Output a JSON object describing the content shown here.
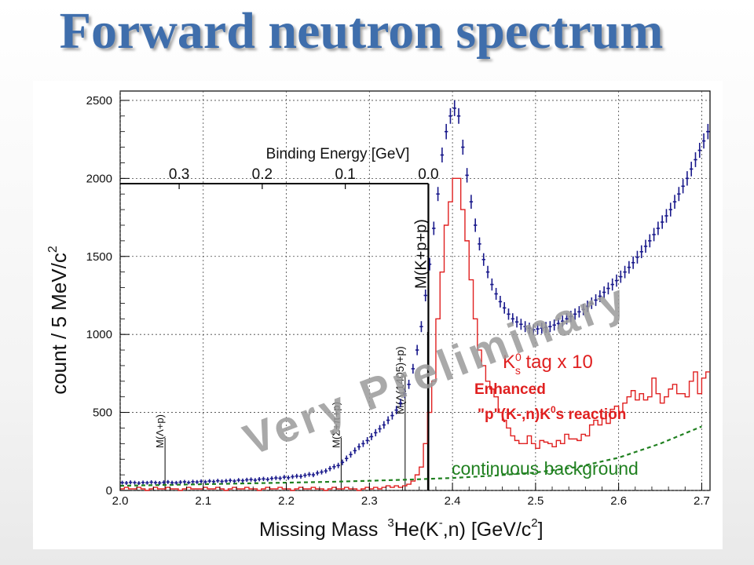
{
  "slide": {
    "title": "Forward neutron spectrum"
  },
  "chart_data": {
    "type": "scatter",
    "xlabel_parts": {
      "prefix": "Missing Mass",
      "sup1": "3",
      "mid": "He(K",
      "sup2": "-",
      "tail": ",n) [GeV/c",
      "sup3": "2",
      "end": "]"
    },
    "ylabel": "count / 5 MeV/c",
    "ylabel_sup": "2",
    "xlim": [
      2.0,
      2.71
    ],
    "ylim": [
      0,
      2560
    ],
    "x_ticks": [
      "2.0",
      "2.1",
      "2.2",
      "2.3",
      "2.4",
      "2.5",
      "2.6",
      "2.7"
    ],
    "y_ticks": [
      "0",
      "500",
      "1000",
      "1500",
      "2000",
      "2500"
    ],
    "top_axis": {
      "label": "Binding Energy [GeV]",
      "ticks": [
        {
          "label": "0.3",
          "x": 2.071
        },
        {
          "label": "0.2",
          "x": 2.171
        },
        {
          "label": "0.1",
          "x": 2.271
        },
        {
          "label": "0.0",
          "x": 2.371
        }
      ]
    },
    "grid": true,
    "series": [
      {
        "name": "data",
        "color": "#1a1a8c",
        "x": [
          2.0025,
          2.0075,
          2.0125,
          2.0175,
          2.0225,
          2.0275,
          2.0325,
          2.0375,
          2.0425,
          2.0475,
          2.0525,
          2.0575,
          2.0625,
          2.0675,
          2.0725,
          2.0775,
          2.0825,
          2.0875,
          2.0925,
          2.0975,
          2.1025,
          2.1075,
          2.1125,
          2.1175,
          2.1225,
          2.1275,
          2.1325,
          2.1375,
          2.1425,
          2.1475,
          2.1525,
          2.1575,
          2.1625,
          2.1675,
          2.1725,
          2.1775,
          2.1825,
          2.1875,
          2.1925,
          2.1975,
          2.2025,
          2.2075,
          2.2125,
          2.2175,
          2.2225,
          2.2275,
          2.2325,
          2.2375,
          2.2425,
          2.2475,
          2.2525,
          2.2575,
          2.2625,
          2.2675,
          2.2725,
          2.2775,
          2.2825,
          2.2875,
          2.2925,
          2.2975,
          2.3025,
          2.3075,
          2.3125,
          2.3175,
          2.3225,
          2.3275,
          2.3325,
          2.3375,
          2.3425,
          2.3475,
          2.3525,
          2.3575,
          2.3625,
          2.3675,
          2.3725,
          2.3775,
          2.3825,
          2.3875,
          2.3925,
          2.3975,
          2.4025,
          2.4075,
          2.4125,
          2.4175,
          2.4225,
          2.4275,
          2.4325,
          2.4375,
          2.4425,
          2.4475,
          2.4525,
          2.4575,
          2.4625,
          2.4675,
          2.4725,
          2.4775,
          2.4825,
          2.4875,
          2.4925,
          2.4975,
          2.5025,
          2.5075,
          2.5125,
          2.5175,
          2.5225,
          2.5275,
          2.5325,
          2.5375,
          2.5425,
          2.5475,
          2.5525,
          2.5575,
          2.5625,
          2.5675,
          2.5725,
          2.5775,
          2.5825,
          2.5875,
          2.5925,
          2.5975,
          2.6025,
          2.6075,
          2.6125,
          2.6175,
          2.6225,
          2.6275,
          2.6325,
          2.6375,
          2.6425,
          2.6475,
          2.6525,
          2.6575,
          2.6625,
          2.6675,
          2.6725,
          2.6775,
          2.6825,
          2.6875,
          2.6925,
          2.6975,
          2.7025,
          2.7075
        ],
        "y": [
          50,
          48,
          52,
          50,
          47,
          51,
          49,
          53,
          50,
          48,
          52,
          54,
          50,
          49,
          53,
          55,
          51,
          56,
          54,
          58,
          55,
          60,
          57,
          62,
          58,
          61,
          64,
          60,
          66,
          63,
          68,
          70,
          66,
          72,
          74,
          71,
          77,
          80,
          78,
          85,
          82,
          88,
          92,
          90,
          97,
          103,
          100,
          112,
          118,
          125,
          140,
          152,
          160,
          180,
          205,
          230,
          255,
          280,
          300,
          320,
          345,
          370,
          395,
          420,
          450,
          480,
          515,
          560,
          620,
          680,
          780,
          900,
          1050,
          1250,
          1450,
          1680,
          1900,
          2150,
          2300,
          2400,
          2450,
          2400,
          2200,
          2020,
          1850,
          1700,
          1580,
          1480,
          1400,
          1320,
          1260,
          1210,
          1170,
          1130,
          1100,
          1080,
          1065,
          1050,
          1040,
          1030,
          1035,
          1040,
          1045,
          1050,
          1060,
          1070,
          1085,
          1100,
          1115,
          1130,
          1145,
          1160,
          1180,
          1200,
          1220,
          1245,
          1270,
          1295,
          1320,
          1345,
          1370,
          1400,
          1430,
          1460,
          1495,
          1530,
          1565,
          1600,
          1640,
          1680,
          1720,
          1760,
          1800,
          1850,
          1900,
          1950,
          2000,
          2060,
          2120,
          2180,
          2240,
          2300
        ]
      },
      {
        "name": "K0s tag x 10",
        "color": "#e02020",
        "x": [
          2.0025,
          2.0075,
          2.0125,
          2.0175,
          2.0225,
          2.0275,
          2.0325,
          2.0375,
          2.0425,
          2.0475,
          2.0525,
          2.0575,
          2.0625,
          2.0675,
          2.0725,
          2.0775,
          2.0825,
          2.0875,
          2.0925,
          2.0975,
          2.1025,
          2.1075,
          2.1125,
          2.1175,
          2.1225,
          2.1275,
          2.1325,
          2.1375,
          2.1425,
          2.1475,
          2.1525,
          2.1575,
          2.1625,
          2.1675,
          2.1725,
          2.1775,
          2.1825,
          2.1875,
          2.1925,
          2.1975,
          2.2025,
          2.2075,
          2.2125,
          2.2175,
          2.2225,
          2.2275,
          2.2325,
          2.2375,
          2.2425,
          2.2475,
          2.2525,
          2.2575,
          2.2625,
          2.2675,
          2.2725,
          2.2775,
          2.2825,
          2.2875,
          2.2925,
          2.2975,
          2.3025,
          2.3075,
          2.3125,
          2.3175,
          2.3225,
          2.3275,
          2.3325,
          2.3375,
          2.3425,
          2.3475,
          2.3525,
          2.3575,
          2.3625,
          2.3675,
          2.3725,
          2.3775,
          2.3825,
          2.3875,
          2.3925,
          2.3975,
          2.4025,
          2.4075,
          2.4125,
          2.4175,
          2.4225,
          2.4275,
          2.4325,
          2.4375,
          2.4425,
          2.4475,
          2.4525,
          2.4575,
          2.4625,
          2.4675,
          2.4725,
          2.4775,
          2.4825,
          2.4875,
          2.4925,
          2.4975,
          2.5025,
          2.5075,
          2.5125,
          2.5175,
          2.5225,
          2.5275,
          2.5325,
          2.5375,
          2.5425,
          2.5475,
          2.5525,
          2.5575,
          2.5625,
          2.5675,
          2.5725,
          2.5775,
          2.5825,
          2.5875,
          2.5925,
          2.5975,
          2.6025,
          2.6075,
          2.6125,
          2.6175,
          2.6225,
          2.6275,
          2.6325,
          2.6375,
          2.6425,
          2.6475,
          2.6525,
          2.6575,
          2.6625,
          2.6675,
          2.6725,
          2.6775,
          2.6825,
          2.6875,
          2.6925,
          2.6975,
          2.7025,
          2.7075
        ],
        "y": [
          10,
          20,
          10,
          10,
          20,
          10,
          0,
          10,
          20,
          10,
          10,
          20,
          10,
          10,
          0,
          10,
          20,
          10,
          10,
          10,
          20,
          10,
          10,
          20,
          10,
          0,
          10,
          20,
          10,
          10,
          20,
          10,
          10,
          0,
          10,
          20,
          10,
          10,
          20,
          10,
          10,
          0,
          10,
          20,
          10,
          10,
          20,
          10,
          10,
          0,
          10,
          20,
          10,
          10,
          20,
          10,
          10,
          0,
          10,
          20,
          10,
          20,
          10,
          20,
          30,
          20,
          30,
          20,
          30,
          40,
          60,
          100,
          150,
          300,
          500,
          700,
          1100,
          1400,
          1700,
          1850,
          2000,
          2000,
          1800,
          1600,
          1350,
          1100,
          900,
          800,
          700,
          650,
          600,
          500,
          450,
          400,
          350,
          320,
          300,
          300,
          350,
          300,
          270,
          320,
          310,
          300,
          280,
          320,
          300,
          360,
          330,
          330,
          320,
          360,
          350,
          420,
          450,
          420,
          460,
          430,
          520,
          540,
          500,
          560,
          600,
          640,
          580,
          620,
          580,
          600,
          720,
          620,
          560,
          600,
          650,
          680,
          620,
          620,
          600,
          700,
          760,
          620,
          720,
          760
        ]
      },
      {
        "name": "continuous background",
        "color": "#208020",
        "x": [
          2.0,
          2.05,
          2.1,
          2.15,
          2.2,
          2.25,
          2.3,
          2.35,
          2.4,
          2.45,
          2.5,
          2.55,
          2.6,
          2.65,
          2.7
        ],
        "y": [
          30,
          35,
          40,
          45,
          50,
          55,
          62,
          70,
          80,
          95,
          115,
          150,
          210,
          300,
          410
        ]
      }
    ],
    "threshold_lines": [
      {
        "label": "M(Λ+p)",
        "x": 2.054
      },
      {
        "label": "M(Σ+π+p)",
        "x": 2.266
      },
      {
        "label": "M(Λ(1405)+p)",
        "x": 2.343
      },
      {
        "label": "M(K+p+p)",
        "x": 2.37
      }
    ],
    "annotations": {
      "ks_tag_main": "K",
      "ks_tag_sup": "0",
      "ks_tag_sub": "s",
      "ks_tag_rest": " tag x 10",
      "enhanced_line1": "Enhanced",
      "enhanced_line2": "\"p\"(K-,n)K",
      "enhanced_line2_sup": "0",
      "enhanced_line2_tail": "s  reaction",
      "continuous_background": "continuous background",
      "watermark": "Very Preliminary"
    }
  }
}
